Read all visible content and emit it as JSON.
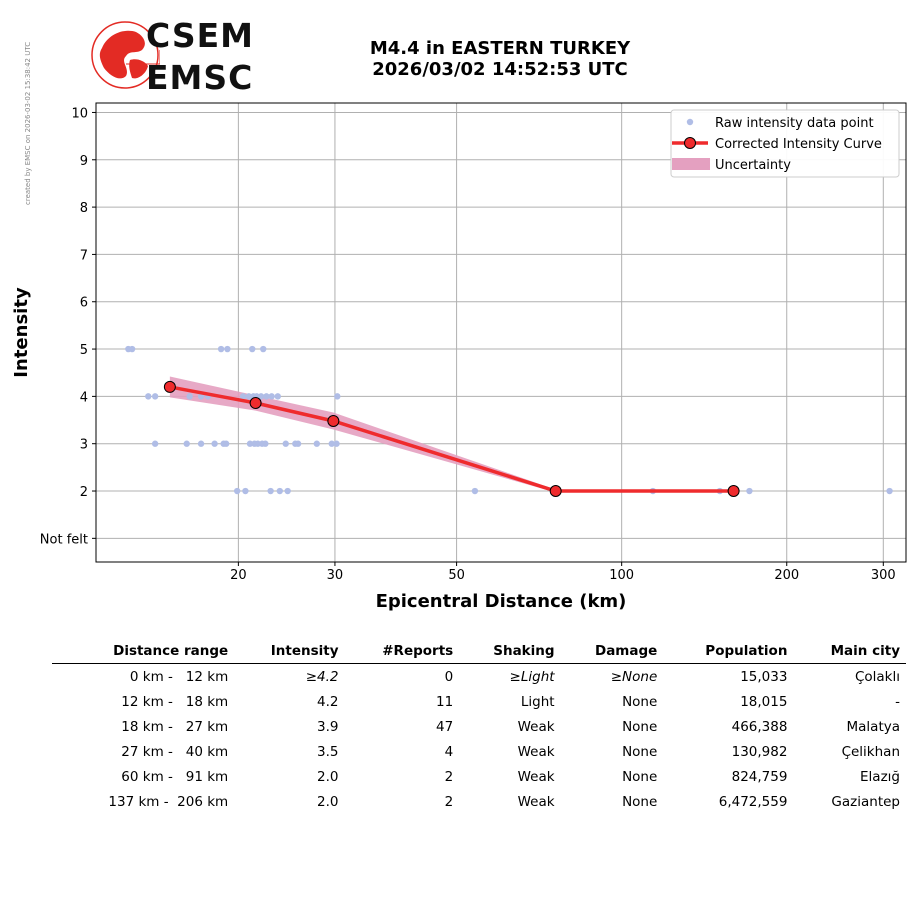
{
  "credit": "created by EMSC on 2026-03-02 15:38:42 UTC",
  "logo": {
    "line1": "CSEM",
    "line2": "EMSC"
  },
  "title": {
    "line1": "M4.4 in EASTERN TURKEY",
    "line2": "2026/03/02 14:52:53 UTC"
  },
  "colors": {
    "raw": "#b0bde6",
    "curve": "#ef2b2d",
    "marker": "#ef2b2d",
    "uncertainty": "#e4a0c0",
    "logo_red": "#e32b24"
  },
  "chart_data": {
    "type": "scatter",
    "xlabel": "Epicentral Distance (km)",
    "ylabel": "Intensity",
    "xscale": "log",
    "xlim": [
      11,
      330
    ],
    "ylim": [
      0.5,
      10.2
    ],
    "xticks": [
      20,
      30,
      50,
      100,
      200,
      300
    ],
    "xtick_labels": [
      "20",
      "30",
      "50",
      "100",
      "200",
      "300"
    ],
    "yticks": [
      1,
      2,
      3,
      4,
      5,
      6,
      7,
      8,
      9,
      10
    ],
    "ytick_labels": [
      "Not felt",
      "2",
      "3",
      "4",
      "5",
      "6",
      "7",
      "8",
      "9",
      "10"
    ],
    "grid": true,
    "legend": {
      "placement": "top-right",
      "entries": [
        "Raw intensity data point",
        "Corrected Intensity Curve",
        "Uncertainty"
      ]
    },
    "series": [
      {
        "name": "Raw intensity data point",
        "points": [
          [
            12.6,
            5
          ],
          [
            12.8,
            5
          ],
          [
            18.6,
            5
          ],
          [
            19.1,
            5
          ],
          [
            21.2,
            5
          ],
          [
            22.2,
            5
          ],
          [
            13.7,
            4
          ],
          [
            14.1,
            4
          ],
          [
            16.3,
            4
          ],
          [
            17.1,
            4
          ],
          [
            17.6,
            4
          ],
          [
            20.4,
            4
          ],
          [
            20.9,
            4
          ],
          [
            21.3,
            4
          ],
          [
            21.6,
            4
          ],
          [
            22.0,
            4
          ],
          [
            22.5,
            4
          ],
          [
            23.0,
            4
          ],
          [
            23.6,
            4
          ],
          [
            30.3,
            4
          ],
          [
            14.1,
            3
          ],
          [
            16.1,
            3
          ],
          [
            17.1,
            3
          ],
          [
            18.1,
            3
          ],
          [
            18.8,
            3
          ],
          [
            19.0,
            3
          ],
          [
            21.0,
            3
          ],
          [
            21.4,
            3
          ],
          [
            21.7,
            3
          ],
          [
            22.1,
            3
          ],
          [
            22.4,
            3
          ],
          [
            24.4,
            3
          ],
          [
            25.4,
            3
          ],
          [
            25.7,
            3
          ],
          [
            27.8,
            3
          ],
          [
            29.6,
            3
          ],
          [
            30.2,
            3
          ],
          [
            19.9,
            2
          ],
          [
            20.6,
            2
          ],
          [
            22.9,
            2
          ],
          [
            23.8,
            2
          ],
          [
            24.6,
            2
          ],
          [
            54.0,
            2
          ],
          [
            114,
            2
          ],
          [
            151,
            2
          ],
          [
            171,
            2
          ],
          [
            308,
            2
          ]
        ]
      },
      {
        "name": "Corrected Intensity Curve",
        "points": [
          [
            15.0,
            4.2
          ],
          [
            21.5,
            3.86
          ],
          [
            29.8,
            3.48
          ],
          [
            75.8,
            2.0
          ],
          [
            160,
            2.0
          ]
        ]
      },
      {
        "name": "Uncertainty",
        "upper": [
          [
            15.0,
            4.42
          ],
          [
            21.5,
            4.02
          ],
          [
            29.8,
            3.66
          ],
          [
            75.8,
            2.03
          ],
          [
            160,
            2.03
          ]
        ],
        "lower": [
          [
            15.0,
            3.98
          ],
          [
            21.5,
            3.7
          ],
          [
            29.8,
            3.3
          ],
          [
            75.8,
            1.97
          ],
          [
            160,
            1.97
          ]
        ]
      }
    ]
  },
  "table": {
    "headers": [
      "Distance range",
      "Intensity",
      "#Reports",
      "Shaking",
      "Damage",
      "Population",
      "Main city"
    ],
    "rows": [
      {
        "range": "0 km -   12 km",
        "intensity": "≥4.2",
        "reports": "0",
        "shaking": "≥Light",
        "damage": "≥None",
        "population": "15,033",
        "city": "Çolaklı"
      },
      {
        "range": "12 km -   18 km",
        "intensity": "4.2",
        "reports": "11",
        "shaking": "Light",
        "damage": "None",
        "population": "18,015",
        "city": "-"
      },
      {
        "range": "18 km -   27 km",
        "intensity": "3.9",
        "reports": "47",
        "shaking": "Weak",
        "damage": "None",
        "population": "466,388",
        "city": "Malatya"
      },
      {
        "range": "27 km -   40 km",
        "intensity": "3.5",
        "reports": "4",
        "shaking": "Weak",
        "damage": "None",
        "population": "130,982",
        "city": "Çelikhan"
      },
      {
        "range": "60 km -   91 km",
        "intensity": "2.0",
        "reports": "2",
        "shaking": "Weak",
        "damage": "None",
        "population": "824,759",
        "city": "Elazığ"
      },
      {
        "range": "137 km -  206 km",
        "intensity": "2.0",
        "reports": "2",
        "shaking": "Weak",
        "damage": "None",
        "population": "6,472,559",
        "city": "Gaziantep"
      }
    ]
  }
}
